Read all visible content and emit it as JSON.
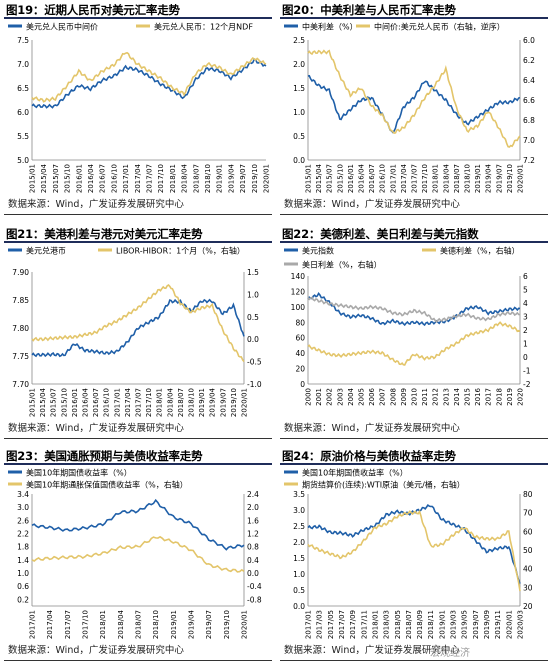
{
  "source_text": "数据来源：Wind，广发证券发展研究中心",
  "watermark": "宏观经济",
  "colors": {
    "blue": "#1f5fa8",
    "gold": "#e3c56a",
    "gray": "#a9a9a9",
    "title_line": "#1f2d5a"
  },
  "chart_data": [
    {
      "type": "line",
      "title": "图19：近期人民币对美元汇率走势",
      "x": [
        "2015/01",
        "2015/04",
        "2015/07",
        "2015/10",
        "2016/01",
        "2016/04",
        "2016/07",
        "2016/10",
        "2017/01",
        "2017/04",
        "2017/07",
        "2017/10",
        "2018/01",
        "2018/04",
        "2018/07",
        "2018/10",
        "2019/01",
        "2019/04",
        "2019/07",
        "2019/10",
        "2020/01"
      ],
      "ylim": [
        5.0,
        7.5
      ],
      "y_ticks": [
        "7.5",
        "7.0",
        "6.5",
        "6.0",
        "5.5",
        "5.0"
      ],
      "y2_ticks": [],
      "series": [
        {
          "name": "美元兑人民币中间价",
          "color": "blue",
          "axis": "left",
          "values": [
            6.13,
            6.12,
            6.12,
            6.36,
            6.55,
            6.48,
            6.66,
            6.75,
            6.93,
            6.88,
            6.75,
            6.58,
            6.45,
            6.29,
            6.68,
            6.91,
            6.86,
            6.71,
            6.88,
            7.08,
            6.96
          ]
        },
        {
          "name": "美元兑人民币：12个月NDF",
          "color": "gold",
          "axis": "left",
          "values": [
            6.3,
            6.24,
            6.28,
            6.55,
            6.85,
            6.65,
            6.85,
            6.98,
            7.25,
            7.0,
            6.85,
            6.7,
            6.5,
            6.38,
            6.8,
            7.0,
            6.93,
            6.78,
            6.95,
            7.12,
            7.0
          ]
        }
      ]
    },
    {
      "type": "line",
      "title": "图20：中美利差与人民币汇率走势",
      "x": [
        "2015/01",
        "2015/04",
        "2015/07",
        "2015/10",
        "2016/01",
        "2016/04",
        "2016/07",
        "2016/10",
        "2017/01",
        "2017/04",
        "2017/07",
        "2017/10",
        "2018/01",
        "2018/04",
        "2018/07",
        "2018/10",
        "2019/01",
        "2019/04",
        "2019/07",
        "2019/10",
        "2020/01"
      ],
      "ylim": [
        0.0,
        2.5
      ],
      "y_ticks": [
        "2.5",
        "2.0",
        "1.5",
        "1.0",
        "0.5",
        "0.0"
      ],
      "y2lim": [
        6.0,
        7.2
      ],
      "y2_ticks": [
        "6.0",
        "6.2",
        "6.4",
        "6.6",
        "6.8",
        "7.0",
        "7.2"
      ],
      "series": [
        {
          "name": "中美利差（%）",
          "color": "blue",
          "axis": "left",
          "values": [
            1.75,
            1.55,
            1.45,
            0.85,
            1.05,
            1.25,
            1.3,
            0.95,
            0.55,
            1.1,
            1.3,
            1.65,
            1.45,
            1.25,
            0.95,
            0.75,
            0.9,
            1.05,
            1.2,
            1.2,
            1.3
          ]
        },
        {
          "name": "中间价:美元兑人民币（右轴，逆序）",
          "color": "gold",
          "axis": "right",
          "values": [
            6.13,
            6.12,
            6.12,
            6.36,
            6.55,
            6.48,
            6.66,
            6.75,
            6.93,
            6.88,
            6.75,
            6.58,
            6.45,
            6.29,
            6.68,
            6.91,
            6.86,
            6.71,
            6.88,
            7.08,
            6.96
          ]
        }
      ]
    },
    {
      "type": "line",
      "title": "图21：美港利差与港元对美元汇率走势",
      "x": [
        "2015/01",
        "2015/04",
        "2015/07",
        "2015/10",
        "2016/01",
        "2016/04",
        "2016/07",
        "2016/10",
        "2017/01",
        "2017/04",
        "2017/07",
        "2017/10",
        "2018/01",
        "2018/04",
        "2018/07",
        "2018/10",
        "2019/01",
        "2019/04",
        "2019/07",
        "2019/10",
        "2020/01"
      ],
      "ylim": [
        7.7,
        7.9
      ],
      "y_ticks": [
        "7.90",
        "7.85",
        "7.80",
        "7.75",
        "7.70"
      ],
      "y2lim": [
        -1.0,
        1.5
      ],
      "y2_ticks": [
        "1.5",
        "1.0",
        "0.5",
        "0.0",
        "-0.5",
        "-1.0"
      ],
      "series": [
        {
          "name": "美元兑港币",
          "color": "blue",
          "axis": "left",
          "values": [
            7.752,
            7.752,
            7.753,
            7.751,
            7.772,
            7.76,
            7.758,
            7.755,
            7.758,
            7.775,
            7.8,
            7.81,
            7.82,
            7.848,
            7.847,
            7.83,
            7.848,
            7.848,
            7.825,
            7.84,
            7.785
          ]
        },
        {
          "name": "LIBOR-HIBOR：1个月（%，右轴）",
          "color": "gold",
          "axis": "right",
          "values": [
            0.0,
            0.0,
            0.02,
            0.04,
            0.05,
            0.1,
            0.15,
            0.3,
            0.4,
            0.55,
            0.7,
            0.9,
            1.1,
            1.2,
            0.8,
            0.6,
            0.7,
            0.75,
            0.2,
            -0.2,
            -0.5
          ]
        }
      ]
    },
    {
      "type": "line",
      "title": "图22：美德利差、美日利差与美元指数",
      "x": [
        "2000",
        "2001",
        "2002",
        "2003",
        "2004",
        "2005",
        "2006",
        "2007",
        "2008",
        "2009",
        "2010",
        "2011",
        "2012",
        "2013",
        "2014",
        "2015",
        "2016",
        "2017",
        "2018",
        "2019",
        "2020"
      ],
      "ylim": [
        0,
        140
      ],
      "y_ticks": [
        "140",
        "120",
        "100",
        "80",
        "60",
        "40",
        "20",
        "0"
      ],
      "y2lim": [
        -2,
        6
      ],
      "y2_ticks": [
        "6",
        "5",
        "4",
        "3",
        "2",
        "1",
        "0",
        "-1",
        "-2"
      ],
      "series": [
        {
          "name": "美元指数",
          "color": "blue",
          "axis": "left",
          "values": [
            110,
            116,
            106,
            92,
            87,
            89,
            85,
            78,
            82,
            78,
            80,
            78,
            80,
            81,
            88,
            98,
            100,
            92,
            94,
            97,
            98
          ]
        },
        {
          "name": "美日利差（%，右轴）",
          "color": "gray",
          "axis": "left",
          "values": [
            112,
            108,
            104,
            102,
            100,
            98,
            100,
            98,
            92,
            90,
            95,
            92,
            82,
            84,
            88,
            90,
            85,
            84,
            90,
            92,
            90
          ]
        },
        {
          "name": "美德利差（%，右轴）",
          "color": "gold",
          "axis": "right",
          "values": [
            0.8,
            0.5,
            0.2,
            0.1,
            0.2,
            0.3,
            0.4,
            0.3,
            -0.2,
            -0.6,
            0.2,
            -0.1,
            0.0,
            0.6,
            1.0,
            1.6,
            1.8,
            2.0,
            2.5,
            2.3,
            1.9
          ]
        }
      ]
    },
    {
      "type": "line",
      "title": "图23：美国通胀预期与美债收益率走势",
      "x": [
        "2017/01",
        "2017/04",
        "2017/07",
        "2017/10",
        "2018/01",
        "2018/04",
        "2018/07",
        "2018/10",
        "2019/01",
        "2019/04",
        "2019/07",
        "2019/10",
        "2020/01"
      ],
      "ylim": [
        0.0,
        3.4
      ],
      "y_ticks": [
        "3.4",
        "3.2",
        "3.0",
        "2.8",
        "2.6",
        "2.4",
        "2.2",
        "2.0",
        "1.8",
        "1.6",
        "1.4",
        "1.2",
        "1.0",
        "0.8",
        "0.6",
        "0.4",
        "0.2",
        "0.0"
      ],
      "y2lim": [
        -1.0,
        2.4
      ],
      "y2_ticks": [
        "2.4",
        "2.2",
        "2.0",
        "1.8",
        "1.6",
        "1.4",
        "1.2",
        "1.0",
        "0.8",
        "0.6",
        "0.4",
        "0.2",
        "0.0",
        "-0.2",
        "-0.4",
        "-0.6",
        "-0.8",
        "-1.0"
      ],
      "series": [
        {
          "name": "美国10年期国债收益率（%）",
          "color": "blue",
          "axis": "left",
          "values": [
            2.45,
            2.38,
            2.3,
            2.37,
            2.48,
            2.85,
            2.88,
            3.18,
            2.7,
            2.5,
            2.03,
            1.75,
            1.85
          ]
        },
        {
          "name": "美国10年期通胀保值国债收益率（%，右轴）",
          "color": "gold",
          "axis": "right",
          "values": [
            0.4,
            0.45,
            0.48,
            0.5,
            0.6,
            0.78,
            0.8,
            1.1,
            0.95,
            0.7,
            0.25,
            0.1,
            0.05
          ]
        }
      ]
    },
    {
      "type": "line",
      "title": "图24：原油价格与美债收益率走势",
      "x": [
        "2017/01",
        "2017/03",
        "2017/05",
        "2017/07",
        "2017/09",
        "2017/11",
        "2018/01",
        "2018/03",
        "2018/05",
        "2018/07",
        "2018/09",
        "2018/11",
        "2019/01",
        "2019/03",
        "2019/05",
        "2019/07",
        "2019/09",
        "2019/11",
        "2020/01",
        "2020/03"
      ],
      "ylim": [
        0.0,
        3.5
      ],
      "y_ticks": [
        "3.5",
        "3.3",
        "3.0",
        "2.8",
        "2.5",
        "2.3",
        "2.0",
        "1.8",
        "1.5",
        "1.3",
        "1.0",
        "0.8",
        "0.5",
        "0.3",
        "0.0"
      ],
      "y2lim": [
        20,
        80
      ],
      "y2_ticks": [
        "80",
        "70",
        "60",
        "50",
        "40",
        "30",
        "20"
      ],
      "series": [
        {
          "name": "美国10年期国债收益率（%）",
          "color": "blue",
          "axis": "left",
          "values": [
            2.45,
            2.48,
            2.3,
            2.28,
            2.2,
            2.38,
            2.5,
            2.85,
            2.95,
            2.88,
            3.0,
            3.15,
            2.7,
            2.55,
            2.4,
            2.05,
            1.7,
            1.8,
            1.85,
            0.7
          ]
        },
        {
          "name": "期货结算价(连续):WTI原油（美元/桶，右轴）",
          "color": "gold",
          "axis": "right",
          "values": [
            53,
            50,
            48,
            46,
            49,
            55,
            62,
            64,
            68,
            70,
            70,
            52,
            53,
            58,
            62,
            57,
            56,
            56,
            60,
            28
          ]
        }
      ]
    }
  ]
}
